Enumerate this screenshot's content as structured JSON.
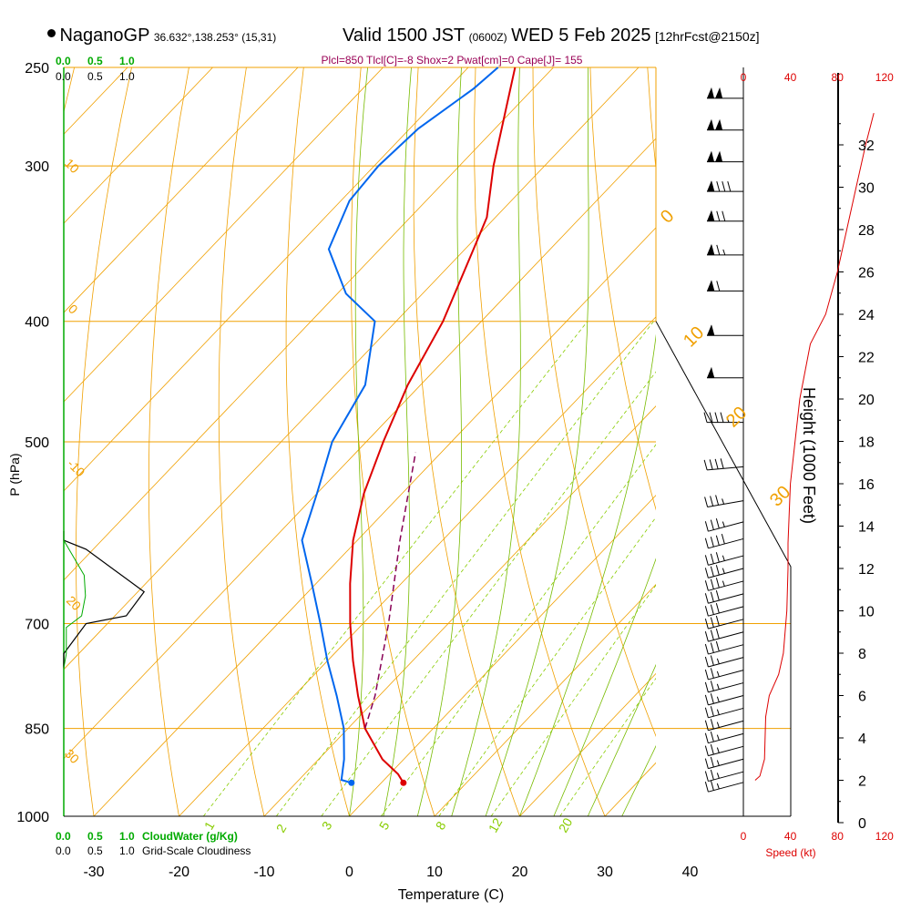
{
  "header": {
    "station": "NaganoGP",
    "location": "36.632°,138.253° (15,31)",
    "valid_prefix": "Valid 1500 JST",
    "valid_utc": "(0600Z)",
    "valid_date": "WED 5 Feb 2025",
    "forecast": "[12hrFcst@2150z]",
    "params": "Plcl=850 Tlcl[C]=-8 Shox=2 Pwat[cm]=0 Cape[J]= 155"
  },
  "labels": {
    "pressure_axis": "P (hPa)",
    "temperature_axis": "Temperature (C)",
    "height_axis": "Height (1000 Feet)",
    "speed_axis": "Speed (kt)",
    "cloudwater_axis": "CloudWater (g/Kg)",
    "cloudiness_axis": "Grid-Scale Cloudiness"
  },
  "colors": {
    "temperature": "#dd0000",
    "dewpoint": "#0066ee",
    "parcel": "#880055",
    "isobar": "#f0a000",
    "isotherm": "#f0a000",
    "dry_adiabat": "#f0a000",
    "moist_adiabat": "#77bb00",
    "mixing_ratio": "#88cc00",
    "cloudwater": "#00aa00",
    "speed": "#dd0000",
    "params": "#990055"
  },
  "chart_data": {
    "type": "skew-t",
    "pressure_levels": [
      "250",
      "300",
      "400",
      "500",
      "700",
      "850",
      "1000"
    ],
    "temperature_ticks": [
      "-30",
      "-20",
      "-10",
      "0",
      "10",
      "20",
      "30",
      "40"
    ],
    "height_ticks": [
      "0",
      "2",
      "4",
      "6",
      "8",
      "10",
      "12",
      "14",
      "16",
      "18",
      "20",
      "22",
      "24",
      "26",
      "28",
      "30",
      "32"
    ],
    "speed_ticks": [
      "0",
      "40",
      "80",
      "120"
    ],
    "cloud_ticks_top": [
      "0.0",
      "0.5",
      "1.0"
    ],
    "cloudiness_ticks": [
      "0.0",
      "0.5",
      "1.0"
    ],
    "temperature_profile": {
      "pressure": [
        940,
        925,
        900,
        850,
        800,
        750,
        700,
        650,
        600,
        550,
        500,
        450,
        400,
        350,
        330,
        300,
        250
      ],
      "temperature": [
        2.6,
        1.0,
        -2.5,
        -8.0,
        -12.5,
        -17.0,
        -21.5,
        -26.0,
        -30.5,
        -34.5,
        -38.0,
        -41.5,
        -44.5,
        -49.0,
        -51.0,
        -56.0,
        -64.5
      ]
    },
    "dewpoint_profile": {
      "pressure": [
        940,
        935,
        900,
        850,
        800,
        750,
        700,
        650,
        600,
        550,
        500,
        450,
        400,
        380,
        350,
        320,
        300,
        280,
        260,
        250
      ],
      "dewpoint": [
        -3.5,
        -5.0,
        -7.0,
        -10.5,
        -15.0,
        -20.0,
        -25.0,
        -30.5,
        -36.5,
        -40.0,
        -44.0,
        -46.5,
        -52.5,
        -59.0,
        -66.0,
        -69.0,
        -69.5,
        -69.0,
        -67.0,
        -66.5
      ]
    },
    "parcel_profile": {
      "pressure": [
        850,
        800,
        700,
        600,
        510
      ],
      "temperature": [
        -8.0,
        -10.5,
        -17.0,
        -25.0,
        -33.0
      ]
    },
    "cloudwater_profile": {
      "pressure": [
        590,
        600,
        610,
        660,
        690,
        700,
        740,
        760
      ],
      "value": [
        0.0,
        0.0,
        0.05,
        0.18,
        0.14,
        0.05,
        0.0,
        0.0
      ]
    },
    "cloudiness_profile": {
      "pressure": [
        590,
        600,
        640,
        665,
        690,
        705,
        740,
        760
      ],
      "value": [
        0.0,
        0.0,
        0.8,
        0.85,
        0.7,
        0.1,
        0.1,
        0.0
      ]
    },
    "wind_speed_profile": {
      "height_kft": [
        2,
        2.2,
        3,
        5,
        6,
        7,
        8,
        10,
        12,
        13.2,
        16,
        20,
        22.6,
        24,
        26,
        28,
        30,
        32,
        33.5
      ],
      "speed_kt": [
        10,
        14,
        18,
        19,
        22,
        30,
        34,
        37,
        38,
        38,
        40,
        48,
        57,
        70,
        80,
        88,
        96,
        104,
        111
      ]
    },
    "wind_barbs": [
      {
        "height_kft": 1.9,
        "speed_kt": 25,
        "direction_deg": 285
      },
      {
        "height_kft": 2.4,
        "speed_kt": 25,
        "direction_deg": 285
      },
      {
        "height_kft": 3.0,
        "speed_kt": 25,
        "direction_deg": 285
      },
      {
        "height_kft": 3.6,
        "speed_kt": 25,
        "direction_deg": 285
      },
      {
        "height_kft": 4.2,
        "speed_kt": 25,
        "direction_deg": 285
      },
      {
        "height_kft": 4.8,
        "speed_kt": 25,
        "direction_deg": 285
      },
      {
        "height_kft": 5.4,
        "speed_kt": 25,
        "direction_deg": 285
      },
      {
        "height_kft": 6.0,
        "speed_kt": 25,
        "direction_deg": 285
      },
      {
        "height_kft": 6.6,
        "speed_kt": 25,
        "direction_deg": 285
      },
      {
        "height_kft": 7.2,
        "speed_kt": 25,
        "direction_deg": 285
      },
      {
        "height_kft": 7.8,
        "speed_kt": 25,
        "direction_deg": 285
      },
      {
        "height_kft": 8.4,
        "speed_kt": 30,
        "direction_deg": 285
      },
      {
        "height_kft": 9.0,
        "speed_kt": 30,
        "direction_deg": 285
      },
      {
        "height_kft": 9.6,
        "speed_kt": 30,
        "direction_deg": 285
      },
      {
        "height_kft": 10.2,
        "speed_kt": 30,
        "direction_deg": 285
      },
      {
        "height_kft": 10.8,
        "speed_kt": 30,
        "direction_deg": 285
      },
      {
        "height_kft": 11.4,
        "speed_kt": 35,
        "direction_deg": 285
      },
      {
        "height_kft": 12.0,
        "speed_kt": 35,
        "direction_deg": 285
      },
      {
        "height_kft": 12.6,
        "speed_kt": 35,
        "direction_deg": 285
      },
      {
        "height_kft": 13.4,
        "speed_kt": 40,
        "direction_deg": 285
      },
      {
        "height_kft": 14.2,
        "speed_kt": 35,
        "direction_deg": 285
      },
      {
        "height_kft": 15.2,
        "speed_kt": 35,
        "direction_deg": 280
      },
      {
        "height_kft": 16.8,
        "speed_kt": 40,
        "direction_deg": 275
      },
      {
        "height_kft": 18.9,
        "speed_kt": 45,
        "direction_deg": 270
      },
      {
        "height_kft": 21.0,
        "speed_kt": 55,
        "direction_deg": 270
      },
      {
        "height_kft": 23.0,
        "speed_kt": 60,
        "direction_deg": 270
      },
      {
        "height_kft": 25.1,
        "speed_kt": 70,
        "direction_deg": 270
      },
      {
        "height_kft": 26.8,
        "speed_kt": 75,
        "direction_deg": 270
      },
      {
        "height_kft": 28.4,
        "speed_kt": 80,
        "direction_deg": 270
      },
      {
        "height_kft": 29.8,
        "speed_kt": 90,
        "direction_deg": 270
      },
      {
        "height_kft": 31.2,
        "speed_kt": 100,
        "direction_deg": 270
      },
      {
        "height_kft": 32.7,
        "speed_kt": 105,
        "direction_deg": 270
      },
      {
        "height_kft": 34.2,
        "speed_kt": 105,
        "direction_deg": 270
      }
    ],
    "isotherm_labels": [
      "0",
      "10",
      "20",
      "30"
    ],
    "dry_adiabat_labels": [
      "-10",
      "0",
      "10",
      "20",
      "30"
    ],
    "mixing_ratio_labels": [
      "1",
      "2",
      "3",
      "5",
      "8",
      "12",
      "20"
    ],
    "surface_markers": {
      "temperature": 2.6,
      "dewpoint": -3.5,
      "pressure": 940
    }
  }
}
